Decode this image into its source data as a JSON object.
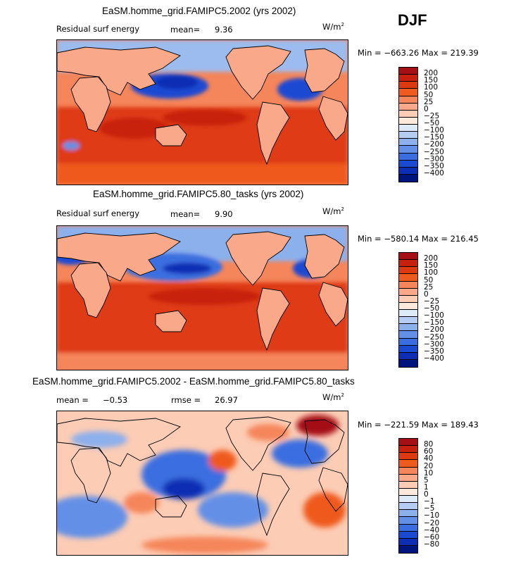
{
  "season": "DJF",
  "units_base": "W/m",
  "units_exp": "2",
  "panels": [
    {
      "title": "EaSM.homme_grid.FAMIPC5.2002 (yrs 2002)",
      "variable": "Residual surf energy",
      "stat1_label": "mean=",
      "stat1_value": "9.36",
      "minmax": "Min = −663.26  Max = 219.39",
      "levels": [
        "200",
        "150",
        "100",
        "50",
        "25",
        "0",
        "−25",
        "−50",
        "−100",
        "−150",
        "−200",
        "−250",
        "−300",
        "−350",
        "−400"
      ],
      "colors": [
        "#a50f15",
        "#c8200f",
        "#de3a12",
        "#ef5a1e",
        "#f5855a",
        "#f9a98a",
        "#fcccb4",
        "#fde8dc",
        "#ddeaf8",
        "#b5cdf2",
        "#8cb0ec",
        "#6390e6",
        "#3a6ee0",
        "#1a4ad2",
        "#0d2eb4",
        "#00147e"
      ]
    },
    {
      "title": "EaSM.homme_grid.FAMIPC5.80_tasks (yrs 2002)",
      "variable": "Residual surf energy",
      "stat1_label": "mean=",
      "stat1_value": "9.90",
      "minmax": "Min = −580.14  Max = 216.45",
      "levels": [
        "200",
        "150",
        "100",
        "50",
        "25",
        "0",
        "−25",
        "−50",
        "−100",
        "−150",
        "−200",
        "−250",
        "−300",
        "−350",
        "−400"
      ],
      "colors": [
        "#a50f15",
        "#c8200f",
        "#de3a12",
        "#ef5a1e",
        "#f5855a",
        "#f9a98a",
        "#fcccb4",
        "#fde8dc",
        "#ddeaf8",
        "#b5cdf2",
        "#8cb0ec",
        "#6390e6",
        "#3a6ee0",
        "#1a4ad2",
        "#0d2eb4",
        "#00147e"
      ]
    },
    {
      "title": "EaSM.homme_grid.FAMIPC5.2002 - EaSM.homme_grid.FAMIPC5.80_tasks",
      "stat1_label": "mean =",
      "stat1_value": "−0.53",
      "stat2_label": "rmse =",
      "stat2_value": "26.97",
      "minmax": "Min = −221.59  Max = 189.43",
      "levels": [
        "80",
        "60",
        "40",
        "20",
        "10",
        "5",
        "1",
        "0",
        "−1",
        "−5",
        "−10",
        "−20",
        "−40",
        "−60",
        "−80"
      ],
      "colors": [
        "#a50f15",
        "#c8200f",
        "#de3a12",
        "#ef5a1e",
        "#f5855a",
        "#f9a98a",
        "#fcccb4",
        "#fde8dc",
        "#ddeaf8",
        "#b5cdf2",
        "#8cb0ec",
        "#6390e6",
        "#3a6ee0",
        "#1a4ad2",
        "#0d2eb4",
        "#00147e"
      ]
    }
  ]
}
